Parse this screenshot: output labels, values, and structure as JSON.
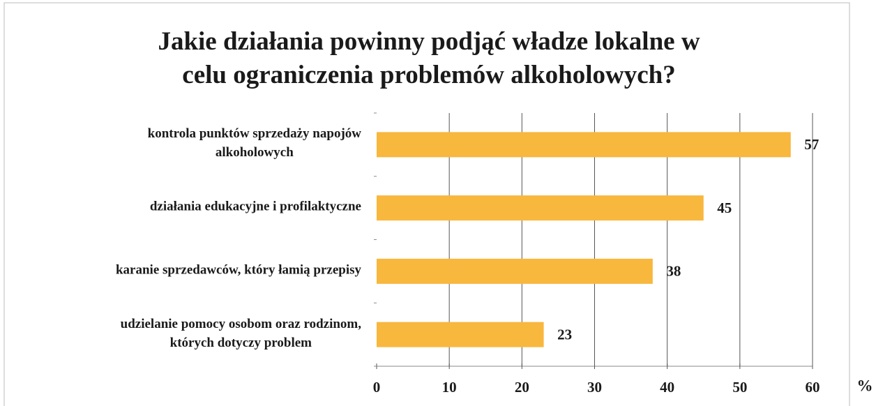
{
  "chart_data": {
    "type": "barh",
    "title": "Jakie działania powinny podjąć władze lokalne w\ncelu ograniczenia problemów alkoholowych?",
    "categories": [
      "kontrola punktów sprzedaży napojów\nalkoholowych",
      "działania edukacyjne i profilaktyczne",
      "karanie sprzedawców, który łamią przepisy",
      "udzielanie pomocy osobom oraz rodzinom,\nktórych dotyczy problem"
    ],
    "values": [
      57,
      45,
      38,
      23
    ],
    "color": "#f8b73d",
    "xlim": [
      0,
      60
    ],
    "xticks": [
      0,
      10,
      20,
      30,
      40,
      50,
      60
    ],
    "xlabel": "%",
    "grid": true
  }
}
